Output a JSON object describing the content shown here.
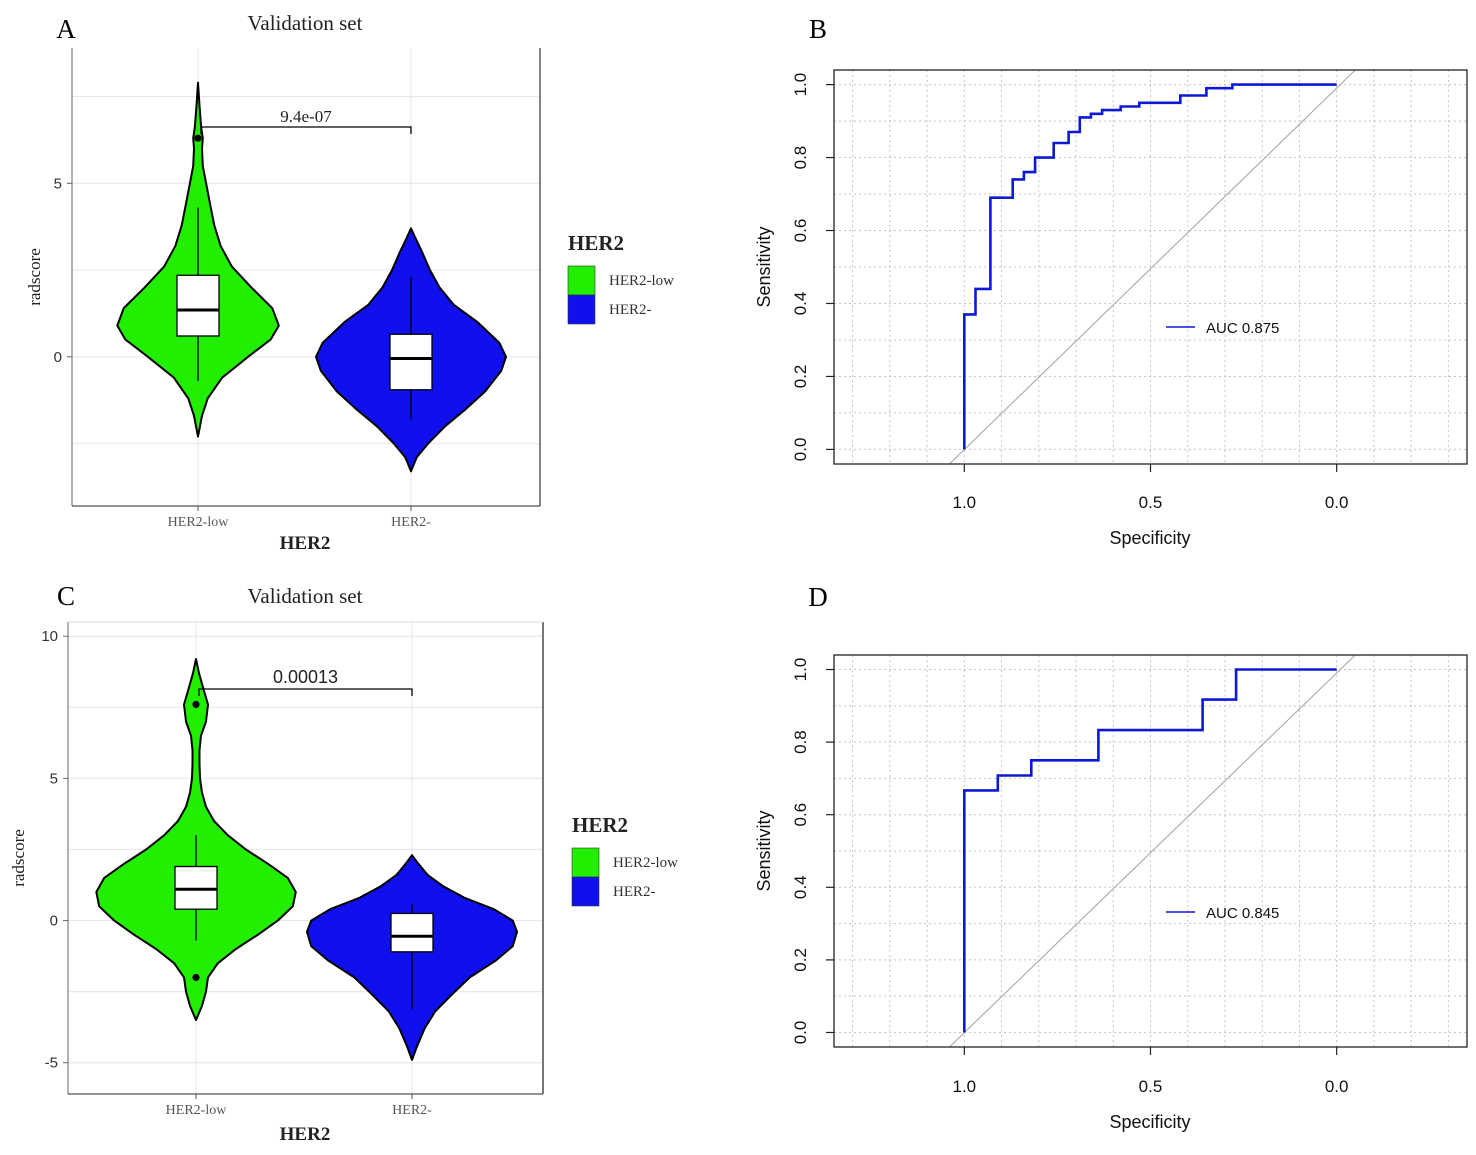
{
  "colors": {
    "her2_low": "#22ee00",
    "her2_neg": "#1010ee",
    "roc_line": "#0b18d8",
    "diagonal": "#a8a8a8",
    "grid_violin": "#e8e8e8",
    "grid_roc": "#c4c4c4"
  },
  "chart_data": [
    {
      "panel": "A",
      "type": "violin",
      "title": "Validation set",
      "xlabel": "HER2",
      "ylabel": "radscore",
      "categories": [
        "HER2-low",
        "HER2-"
      ],
      "ylim": [
        -4.3,
        8.9
      ],
      "yticks": [
        0,
        5
      ],
      "ytick_labels": [
        "0",
        "5"
      ],
      "p_value": "9.4e-07",
      "legend": {
        "title": "HER2",
        "entries": [
          "HER2-low",
          "HER2-"
        ],
        "position": "right"
      },
      "groups": [
        {
          "name": "HER2-low",
          "box": {
            "q1": 0.6,
            "median": 1.35,
            "q3": 2.35,
            "whisker_low": -0.7,
            "whisker_high": 4.3
          },
          "outliers": [
            6.3
          ],
          "density": [
            [
              -2.3,
              0
            ],
            [
              -1.7,
              0.05
            ],
            [
              -1.2,
              0.12
            ],
            [
              -0.6,
              0.3
            ],
            [
              0,
              0.62
            ],
            [
              0.5,
              0.9
            ],
            [
              0.9,
              1.0
            ],
            [
              1.4,
              0.92
            ],
            [
              2,
              0.66
            ],
            [
              2.6,
              0.42
            ],
            [
              3.2,
              0.28
            ],
            [
              3.8,
              0.2
            ],
            [
              4.4,
              0.15
            ],
            [
              5,
              0.1
            ],
            [
              5.5,
              0.06
            ],
            [
              6,
              0.05
            ],
            [
              6.3,
              0.06
            ],
            [
              6.6,
              0.04
            ],
            [
              7.2,
              0.02
            ],
            [
              7.9,
              0
            ]
          ],
          "max_halfwidth": 0.85
        },
        {
          "name": "HER2-",
          "box": {
            "q1": -0.95,
            "median": -0.05,
            "q3": 0.65,
            "whisker_low": -1.8,
            "whisker_high": 2.3
          },
          "outliers": [],
          "density": [
            [
              -3.3,
              0
            ],
            [
              -2.9,
              0.06
            ],
            [
              -2.5,
              0.18
            ],
            [
              -2,
              0.36
            ],
            [
              -1.5,
              0.58
            ],
            [
              -1,
              0.78
            ],
            [
              -0.4,
              0.95
            ],
            [
              0,
              1.0
            ],
            [
              0.4,
              0.93
            ],
            [
              1,
              0.7
            ],
            [
              1.5,
              0.45
            ],
            [
              2,
              0.3
            ],
            [
              2.5,
              0.2
            ],
            [
              3,
              0.12
            ],
            [
              3.4,
              0.05
            ],
            [
              3.7,
              0
            ]
          ],
          "max_halfwidth": 1.0
        }
      ]
    },
    {
      "panel": "B",
      "type": "line",
      "subtype": "roc",
      "xlabel": "Specificity",
      "ylabel": "Sensitivity",
      "xlim": [
        1.35,
        -0.35
      ],
      "ylim": [
        -0.04,
        1.04
      ],
      "xticks": [
        1.0,
        0.5,
        0.0
      ],
      "xtick_labels": [
        "1.0",
        "0.5",
        "0.0"
      ],
      "yticks": [
        0,
        0.2,
        0.4,
        0.6,
        0.8,
        1.0
      ],
      "ytick_labels": [
        "0.0",
        "0.2",
        "0.4",
        "0.6",
        "0.8",
        "1.0"
      ],
      "legend": {
        "entries": [
          "AUC 0.875"
        ],
        "position": "center-right"
      },
      "auc": 0.875,
      "specificity": [
        1.0,
        1.0,
        0.97,
        0.97,
        0.93,
        0.93,
        0.87,
        0.87,
        0.84,
        0.84,
        0.81,
        0.81,
        0.76,
        0.76,
        0.72,
        0.72,
        0.69,
        0.69,
        0.66,
        0.66,
        0.63,
        0.63,
        0.58,
        0.58,
        0.53,
        0.53,
        0.42,
        0.42,
        0.35,
        0.35,
        0.28,
        0.28,
        0.0
      ],
      "sensitivity": [
        0.0,
        0.37,
        0.37,
        0.44,
        0.44,
        0.69,
        0.69,
        0.74,
        0.74,
        0.76,
        0.76,
        0.8,
        0.8,
        0.84,
        0.84,
        0.87,
        0.87,
        0.91,
        0.91,
        0.92,
        0.92,
        0.93,
        0.93,
        0.94,
        0.94,
        0.95,
        0.95,
        0.97,
        0.97,
        0.99,
        0.99,
        1.0,
        1.0
      ]
    },
    {
      "panel": "C",
      "type": "violin",
      "title": "Validation set",
      "xlabel": "HER2",
      "ylabel": "radscore",
      "categories": [
        "HER2-low",
        "HER2-"
      ],
      "ylim": [
        -6.1,
        10.5
      ],
      "yticks": [
        -5,
        0,
        5,
        10
      ],
      "ytick_labels": [
        "-5",
        "0",
        "5",
        "10"
      ],
      "p_value": "0.00013",
      "legend": {
        "title": "HER2",
        "entries": [
          "HER2-low",
          "HER2-"
        ],
        "position": "right"
      },
      "groups": [
        {
          "name": "HER2-low",
          "box": {
            "q1": 0.4,
            "median": 1.1,
            "q3": 1.9,
            "whisker_low": -0.7,
            "whisker_high": 3.0
          },
          "outliers": [
            7.6,
            -2.0
          ],
          "density": [
            [
              -3.5,
              0
            ],
            [
              -3,
              0.06
            ],
            [
              -2.5,
              0.1
            ],
            [
              -2,
              0.12
            ],
            [
              -1.5,
              0.22
            ],
            [
              -1,
              0.4
            ],
            [
              -0.5,
              0.62
            ],
            [
              0,
              0.82
            ],
            [
              0.5,
              0.97
            ],
            [
              1,
              1.0
            ],
            [
              1.5,
              0.92
            ],
            [
              2,
              0.72
            ],
            [
              2.5,
              0.5
            ],
            [
              3,
              0.32
            ],
            [
              3.5,
              0.18
            ],
            [
              4,
              0.1
            ],
            [
              4.5,
              0.06
            ],
            [
              5,
              0.04
            ],
            [
              5.5,
              0.035
            ],
            [
              6,
              0.035
            ],
            [
              6.5,
              0.05
            ],
            [
              7,
              0.1
            ],
            [
              7.6,
              0.12
            ],
            [
              8.2,
              0.07
            ],
            [
              8.7,
              0.03
            ],
            [
              9.2,
              0
            ]
          ],
          "max_halfwidth": 0.95
        },
        {
          "name": "HER2-",
          "box": {
            "q1": -1.1,
            "median": -0.55,
            "q3": 0.25,
            "whisker_low": -3.1,
            "whisker_high": 0.6
          },
          "outliers": [],
          "density": [
            [
              -4.9,
              0
            ],
            [
              -4.4,
              0.05
            ],
            [
              -3.8,
              0.12
            ],
            [
              -3.2,
              0.22
            ],
            [
              -2.6,
              0.38
            ],
            [
              -2,
              0.55
            ],
            [
              -1.4,
              0.8
            ],
            [
              -0.9,
              0.96
            ],
            [
              -0.4,
              1.0
            ],
            [
              0,
              0.96
            ],
            [
              0.4,
              0.78
            ],
            [
              0.8,
              0.5
            ],
            [
              1.2,
              0.3
            ],
            [
              1.6,
              0.15
            ],
            [
              2,
              0.06
            ],
            [
              2.3,
              0
            ]
          ],
          "max_halfwidth": 1.0
        }
      ]
    },
    {
      "panel": "D",
      "type": "line",
      "subtype": "roc",
      "xlabel": "Specificity",
      "ylabel": "Sensitivity",
      "xlim": [
        1.35,
        -0.35
      ],
      "ylim": [
        -0.04,
        1.04
      ],
      "xticks": [
        1.0,
        0.5,
        0.0
      ],
      "xtick_labels": [
        "1.0",
        "0.5",
        "0.0"
      ],
      "yticks": [
        0,
        0.2,
        0.4,
        0.6,
        0.8,
        1.0
      ],
      "ytick_labels": [
        "0.0",
        "0.2",
        "0.4",
        "0.6",
        "0.8",
        "1.0"
      ],
      "legend": {
        "entries": [
          "AUC 0.845"
        ],
        "position": "center-right"
      },
      "auc": 0.845,
      "specificity": [
        1.0,
        1.0,
        0.91,
        0.91,
        0.82,
        0.82,
        0.64,
        0.64,
        0.36,
        0.36,
        0.27,
        0.27,
        0.0
      ],
      "sensitivity": [
        0.0,
        0.667,
        0.667,
        0.708,
        0.708,
        0.75,
        0.75,
        0.833,
        0.833,
        0.917,
        0.917,
        1.0,
        1.0
      ]
    }
  ]
}
